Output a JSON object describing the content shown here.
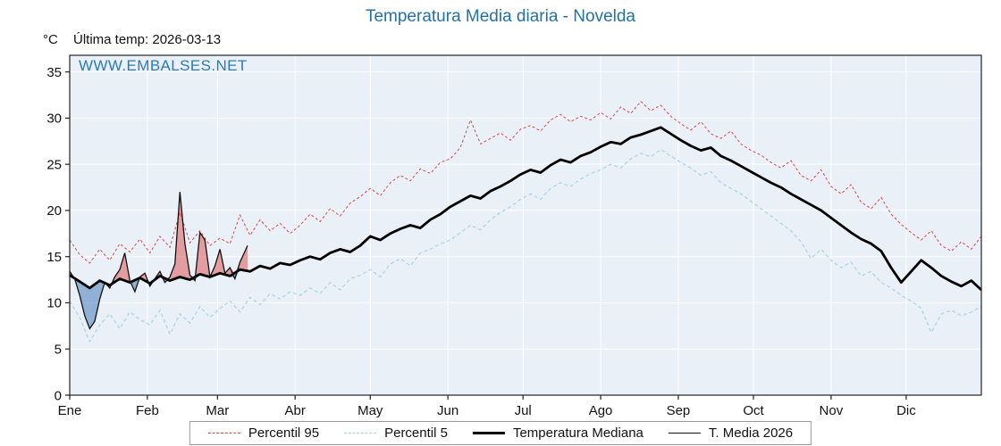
{
  "header": {
    "title": "Temperatura Media diaria - Novelda",
    "unit_label": "°C",
    "last_temp_label": "Última temp: 2026-03-13",
    "watermark": "WWW.EMBALSES.NET"
  },
  "colors": {
    "title_blue": "#2470a8",
    "watermark_blue": "#2b7bb9",
    "p95": "#e04545",
    "p5": "#a7d2e6",
    "median": "#000000",
    "t2026": "#111111",
    "fill_above": "rgba(222,90,90,0.55)",
    "fill_below": "rgba(85,135,190,0.6)",
    "plot_bg": "#e9f0f8",
    "grid": "#ffffff"
  },
  "legend": {
    "items": [
      {
        "label": "Percentil 95",
        "style": "dashed",
        "color_key": "p95",
        "weight": 1.6
      },
      {
        "label": "Percentil 5",
        "style": "dashed",
        "color_key": "p5",
        "weight": 1.6
      },
      {
        "label": "Temperatura Mediana",
        "style": "solid",
        "color_key": "median",
        "weight": 3
      },
      {
        "label": "T. Media 2026",
        "style": "solid",
        "color_key": "t2026",
        "weight": 1.5
      }
    ]
  },
  "chart_data": {
    "type": "line",
    "title": "Temperatura Media diaria - Novelda",
    "xlabel": "",
    "ylabel": "°C",
    "ylim": [
      0,
      35
    ],
    "grid": true,
    "legend_position": "bottom",
    "yticks": [
      0,
      5,
      10,
      15,
      20,
      25,
      30,
      35
    ],
    "month_labels": [
      "Ene",
      "Feb",
      "Mar",
      "Abr",
      "May",
      "Jun",
      "Jul",
      "Ago",
      "Sep",
      "Oct",
      "Nov",
      "Dic"
    ],
    "month_start_days": [
      1,
      32,
      60,
      91,
      121,
      152,
      182,
      213,
      244,
      274,
      305,
      335
    ],
    "days": [
      1,
      5,
      9,
      13,
      17,
      21,
      25,
      29,
      33,
      37,
      41,
      45,
      49,
      53,
      57,
      61,
      65,
      69,
      73,
      77,
      81,
      85,
      89,
      93,
      97,
      101,
      105,
      109,
      113,
      117,
      121,
      125,
      129,
      133,
      137,
      141,
      145,
      149,
      153,
      157,
      161,
      165,
      169,
      173,
      177,
      181,
      185,
      189,
      193,
      197,
      201,
      205,
      209,
      213,
      217,
      221,
      225,
      229,
      233,
      237,
      241,
      245,
      249,
      253,
      257,
      261,
      265,
      269,
      273,
      277,
      281,
      285,
      289,
      293,
      297,
      301,
      305,
      309,
      313,
      317,
      321,
      325,
      329,
      333,
      337,
      341,
      345,
      349,
      353,
      357,
      361,
      365
    ],
    "series": [
      {
        "name": "Percentil 95",
        "values": [
          16.8,
          15.2,
          14.3,
          15.8,
          14.6,
          16.4,
          15.5,
          16.9,
          15.4,
          17.2,
          16.0,
          19.8,
          16.5,
          17.8,
          16.2,
          17.0,
          16.4,
          19.5,
          17.3,
          19.0,
          17.8,
          18.6,
          17.5,
          18.4,
          19.6,
          18.8,
          20.2,
          19.4,
          20.8,
          21.5,
          22.4,
          21.6,
          23.0,
          23.8,
          23.2,
          24.5,
          24.0,
          25.2,
          25.6,
          26.8,
          29.8,
          27.2,
          27.8,
          28.4,
          27.6,
          28.8,
          29.2,
          28.6,
          29.8,
          30.4,
          29.6,
          30.2,
          29.8,
          30.6,
          29.9,
          31.2,
          30.5,
          31.8,
          30.8,
          31.4,
          30.2,
          29.4,
          28.7,
          29.6,
          28.3,
          27.8,
          28.6,
          27.2,
          26.5,
          26.0,
          25.2,
          24.6,
          25.4,
          23.8,
          23.2,
          24.4,
          22.6,
          21.8,
          22.8,
          20.9,
          20.2,
          21.4,
          19.6,
          18.5,
          17.6,
          16.8,
          17.8,
          16.2,
          15.6,
          16.6,
          15.8,
          17.2
        ]
      },
      {
        "name": "Percentil 5",
        "values": [
          10.2,
          8.4,
          5.8,
          7.6,
          8.8,
          7.2,
          9.0,
          8.2,
          7.6,
          9.2,
          6.6,
          8.8,
          7.8,
          9.6,
          8.4,
          9.4,
          10.2,
          9.0,
          10.6,
          9.8,
          11.0,
          10.4,
          11.2,
          10.8,
          11.6,
          11.0,
          12.2,
          11.4,
          12.6,
          13.0,
          13.6,
          12.8,
          14.2,
          14.8,
          14.0,
          15.4,
          15.8,
          16.4,
          16.8,
          17.6,
          18.4,
          17.9,
          19.0,
          19.8,
          20.4,
          21.2,
          21.8,
          21.2,
          22.4,
          23.0,
          22.6,
          23.4,
          24.0,
          24.4,
          25.0,
          24.6,
          25.6,
          26.2,
          25.8,
          26.6,
          25.9,
          25.2,
          24.6,
          23.8,
          24.2,
          23.0,
          22.4,
          21.8,
          21.0,
          20.2,
          19.4,
          18.6,
          17.8,
          16.6,
          14.8,
          15.8,
          14.6,
          13.8,
          14.4,
          12.9,
          13.4,
          12.2,
          11.6,
          10.8,
          10.2,
          9.4,
          6.8,
          8.8,
          9.2,
          8.6,
          9.0,
          9.6
        ]
      },
      {
        "name": "Temperatura Mediana",
        "values": [
          13.0,
          12.3,
          11.6,
          12.4,
          11.9,
          12.6,
          12.2,
          12.7,
          12.1,
          12.9,
          12.4,
          12.8,
          12.5,
          13.1,
          12.8,
          13.2,
          12.9,
          13.6,
          13.4,
          14.0,
          13.7,
          14.3,
          14.1,
          14.6,
          15.0,
          14.7,
          15.4,
          15.8,
          15.5,
          16.2,
          17.2,
          16.8,
          17.5,
          18.0,
          18.4,
          18.1,
          19.0,
          19.6,
          20.4,
          21.0,
          21.6,
          21.3,
          22.1,
          22.6,
          23.2,
          23.9,
          24.4,
          24.1,
          24.9,
          25.5,
          25.2,
          25.9,
          26.3,
          26.9,
          27.4,
          27.2,
          27.9,
          28.2,
          28.6,
          29.0,
          28.3,
          27.6,
          27.0,
          26.5,
          26.8,
          25.9,
          25.4,
          24.8,
          24.2,
          23.6,
          23.0,
          22.5,
          21.8,
          21.2,
          20.6,
          20.0,
          19.2,
          18.4,
          17.6,
          16.9,
          16.4,
          15.6,
          13.8,
          12.2,
          13.4,
          14.6,
          13.8,
          12.9,
          12.3,
          11.8,
          12.4,
          11.4
        ]
      },
      {
        "name": "T. Media 2026",
        "days": [
          1,
          3,
          5,
          7,
          9,
          11,
          13,
          15,
          17,
          19,
          21,
          23,
          25,
          27,
          29,
          31,
          33,
          35,
          37,
          39,
          41,
          43,
          45,
          47,
          49,
          51,
          53,
          55,
          57,
          59,
          61,
          63,
          65,
          67,
          69,
          71,
          72
        ],
        "values": [
          13.4,
          12.6,
          10.8,
          8.6,
          7.2,
          8.0,
          10.4,
          12.2,
          11.6,
          12.8,
          13.6,
          15.4,
          12.4,
          11.2,
          12.8,
          13.2,
          11.8,
          12.6,
          13.4,
          12.2,
          12.8,
          14.2,
          22.0,
          16.4,
          13.0,
          12.4,
          17.6,
          16.8,
          12.8,
          14.0,
          15.8,
          13.2,
          13.8,
          12.6,
          14.4,
          15.6,
          16.2
        ]
      }
    ]
  }
}
